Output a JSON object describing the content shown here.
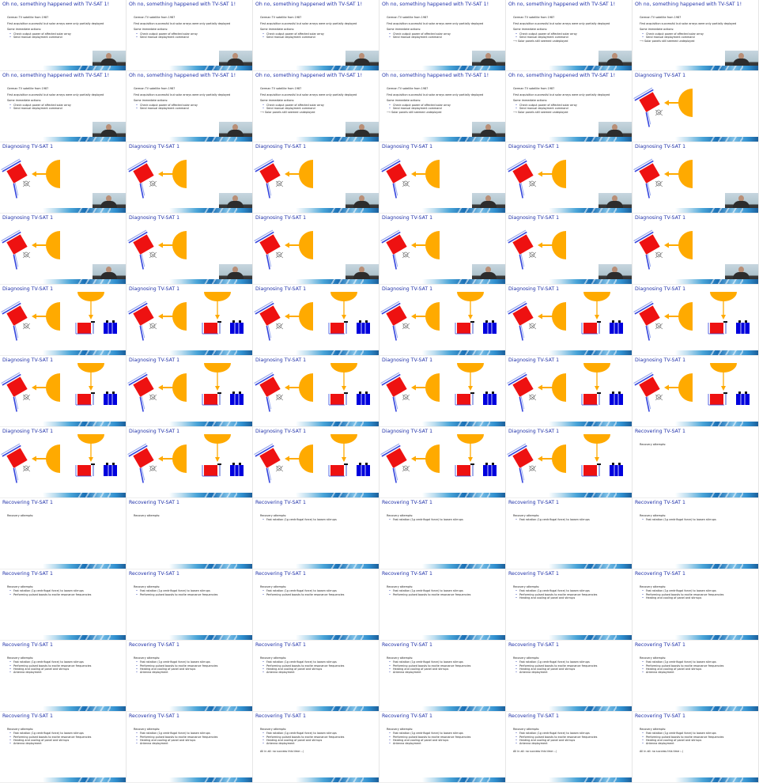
{
  "titles": {
    "oh_no": "Oh no, something happened with TV-SAT 1!",
    "diagnosing": "Diagnosing TV-SAT 1",
    "recovering": "Recovering TV-SAT 1"
  },
  "oh_no_content": {
    "line1": "German TV satellite from 1987",
    "line2": "First acquisition successful but solar arrays were only partially deployed",
    "actions_label": "Some immediate actions:",
    "action_items": [
      "Check output power of affected solar array",
      "Send manual deployment command"
    ],
    "arrow_line": "Solar panels still seemed undeployed"
  },
  "recovering_content": {
    "attempts_label": "Recovery attempts:",
    "attempt_items": [
      "Fast rotation (1g centrifugal force) to loosen stirrups",
      "Performing pulsed boosts to excite resonance frequencies",
      "Heating and cooling of panel and stirrups",
      "Antenna deployment"
    ],
    "conclusion": "All in all: no success this time :-("
  },
  "colors": {
    "title": "#2233aa",
    "satellite": "#ee1111",
    "panel": "#3344dd",
    "panel_light": "#99aaee",
    "sun": "#ffaa00",
    "battery": "#0000dd"
  },
  "slides": [
    {
      "kind": "oh_no",
      "n": 2,
      "arrow": false,
      "video": true
    },
    {
      "kind": "oh_no",
      "n": 2,
      "arrow": false,
      "video": true
    },
    {
      "kind": "oh_no",
      "n": 2,
      "arrow": false,
      "video": true
    },
    {
      "kind": "oh_no",
      "n": 2,
      "arrow": false,
      "video": true
    },
    {
      "kind": "oh_no",
      "n": 2,
      "arrow": true,
      "video": true
    },
    {
      "kind": "oh_no",
      "n": 2,
      "arrow": true,
      "video": true
    },
    {
      "kind": "oh_no",
      "n": 2,
      "arrow": false,
      "video": true
    },
    {
      "kind": "oh_no",
      "n": 2,
      "arrow": false,
      "video": true
    },
    {
      "kind": "oh_no",
      "n": 2,
      "arrow": true,
      "video": true
    },
    {
      "kind": "oh_no",
      "n": 2,
      "arrow": true,
      "video": true
    },
    {
      "kind": "oh_no",
      "n": 2,
      "arrow": true,
      "video": true
    },
    {
      "kind": "diag",
      "step": 1,
      "video": false
    },
    {
      "kind": "diag",
      "step": 1,
      "video": true
    },
    {
      "kind": "diag",
      "step": 1,
      "video": true
    },
    {
      "kind": "diag",
      "step": 1,
      "video": true
    },
    {
      "kind": "diag",
      "step": 1,
      "video": true
    },
    {
      "kind": "diag",
      "step": 1,
      "video": true
    },
    {
      "kind": "diag",
      "step": 1,
      "video": true
    },
    {
      "kind": "diag",
      "step": 1,
      "video": true
    },
    {
      "kind": "diag",
      "step": 1,
      "video": true
    },
    {
      "kind": "diag",
      "step": 1,
      "video": true
    },
    {
      "kind": "diag",
      "step": 1,
      "video": true
    },
    {
      "kind": "diag",
      "step": 1,
      "video": true
    },
    {
      "kind": "diag",
      "step": 1,
      "video": true
    },
    {
      "kind": "diag",
      "step": 2,
      "video": false
    },
    {
      "kind": "diag",
      "step": 2,
      "video": false
    },
    {
      "kind": "diag",
      "step": 2,
      "video": false
    },
    {
      "kind": "diag",
      "step": 2,
      "video": false
    },
    {
      "kind": "diag",
      "step": 2,
      "video": false
    },
    {
      "kind": "diag",
      "step": 2,
      "video": false
    },
    {
      "kind": "diag",
      "step": 2,
      "video": false
    },
    {
      "kind": "diag",
      "step": 2,
      "video": false
    },
    {
      "kind": "diag",
      "step": 2,
      "video": false
    },
    {
      "kind": "diag",
      "step": 2,
      "video": false
    },
    {
      "kind": "diag",
      "step": 2,
      "video": false
    },
    {
      "kind": "diag",
      "step": 2,
      "video": false
    },
    {
      "kind": "diag",
      "step": 2,
      "video": false
    },
    {
      "kind": "diag",
      "step": 2,
      "video": false
    },
    {
      "kind": "diag",
      "step": 2,
      "video": false
    },
    {
      "kind": "diag",
      "step": 2,
      "video": false
    },
    {
      "kind": "diag",
      "step": 2,
      "video": false
    },
    {
      "kind": "rec",
      "n": 0,
      "concl": false
    },
    {
      "kind": "rec",
      "n": 0,
      "concl": false
    },
    {
      "kind": "rec",
      "n": 0,
      "concl": false
    },
    {
      "kind": "rec",
      "n": 1,
      "concl": false
    },
    {
      "kind": "rec",
      "n": 1,
      "concl": false
    },
    {
      "kind": "rec",
      "n": 1,
      "concl": false
    },
    {
      "kind": "rec",
      "n": 1,
      "concl": false
    },
    {
      "kind": "rec",
      "n": 2,
      "concl": false
    },
    {
      "kind": "rec",
      "n": 2,
      "concl": false
    },
    {
      "kind": "rec",
      "n": 2,
      "concl": false
    },
    {
      "kind": "rec",
      "n": 2,
      "concl": false
    },
    {
      "kind": "rec",
      "n": 3,
      "concl": false
    },
    {
      "kind": "rec",
      "n": 3,
      "concl": false
    },
    {
      "kind": "rec",
      "n": 4,
      "concl": false
    },
    {
      "kind": "rec",
      "n": 4,
      "concl": false
    },
    {
      "kind": "rec",
      "n": 4,
      "concl": false
    },
    {
      "kind": "rec",
      "n": 4,
      "concl": false
    },
    {
      "kind": "rec",
      "n": 4,
      "concl": false
    },
    {
      "kind": "rec",
      "n": 4,
      "concl": false
    },
    {
      "kind": "rec",
      "n": 4,
      "concl": false
    },
    {
      "kind": "rec",
      "n": 4,
      "concl": false
    },
    {
      "kind": "rec",
      "n": 4,
      "concl": true
    },
    {
      "kind": "rec",
      "n": 4,
      "concl": false
    },
    {
      "kind": "rec",
      "n": 4,
      "concl": true
    },
    {
      "kind": "rec",
      "n": 4,
      "concl": true
    }
  ]
}
